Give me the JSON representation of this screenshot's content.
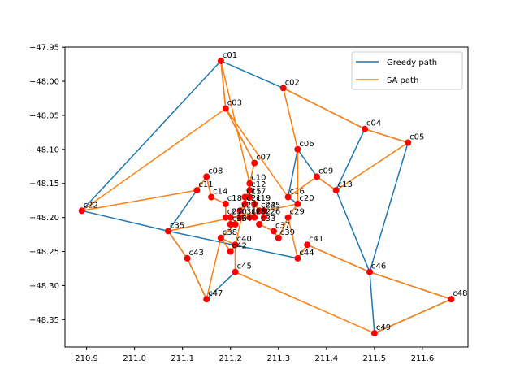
{
  "chart_data": {
    "type": "line",
    "title": "",
    "xlabel": "",
    "ylabel": "",
    "xlim": [
      210.855,
      211.695
    ],
    "ylim": [
      -48.3902,
      -47.9498
    ],
    "xticks": [
      210.9,
      211.0,
      211.1,
      211.2,
      211.3,
      211.4,
      211.5,
      211.6
    ],
    "xtick_labels": [
      "210.9",
      "211.0",
      "211.1",
      "211.2",
      "211.3",
      "211.4",
      "211.5",
      "211.6"
    ],
    "yticks": [
      -47.95,
      -48.0,
      -48.05,
      -48.1,
      -48.15,
      -48.2,
      -48.25,
      -48.3,
      -48.35
    ],
    "ytick_labels": [
      "−47.95",
      "−48.00",
      "−48.05",
      "−48.10",
      "−48.15",
      "−48.20",
      "−48.25",
      "−48.30",
      "−48.35"
    ],
    "grid": false,
    "legend_position": "upper right",
    "cities": [
      {
        "label": "c01",
        "x": 211.18,
        "y": -47.97
      },
      {
        "label": "c02",
        "x": 211.31,
        "y": -48.01
      },
      {
        "label": "c03",
        "x": 211.19,
        "y": -48.04
      },
      {
        "label": "c04",
        "x": 211.48,
        "y": -48.07
      },
      {
        "label": "c05",
        "x": 211.57,
        "y": -48.09
      },
      {
        "label": "c06",
        "x": 211.34,
        "y": -48.1
      },
      {
        "label": "c07",
        "x": 211.25,
        "y": -48.12
      },
      {
        "label": "c08",
        "x": 211.15,
        "y": -48.14
      },
      {
        "label": "c09",
        "x": 211.38,
        "y": -48.14
      },
      {
        "label": "c10",
        "x": 211.24,
        "y": -48.15
      },
      {
        "label": "c11",
        "x": 211.13,
        "y": -48.16
      },
      {
        "label": "c12",
        "x": 211.24,
        "y": -48.16
      },
      {
        "label": "c13",
        "x": 211.42,
        "y": -48.16
      },
      {
        "label": "c14",
        "x": 211.16,
        "y": -48.17
      },
      {
        "label": "c15",
        "x": 211.23,
        "y": -48.17
      },
      {
        "label": "c16",
        "x": 211.32,
        "y": -48.17
      },
      {
        "label": "c17",
        "x": 211.24,
        "y": -48.17
      },
      {
        "label": "c18",
        "x": 211.19,
        "y": -48.18
      },
      {
        "label": "c19",
        "x": 211.25,
        "y": -48.18
      },
      {
        "label": "c20",
        "x": 211.34,
        "y": -48.18
      },
      {
        "label": "c21",
        "x": 211.23,
        "y": -48.18
      },
      {
        "label": "c22",
        "x": 210.89,
        "y": -48.19
      },
      {
        "label": "c23",
        "x": 211.22,
        "y": -48.19
      },
      {
        "label": "c24",
        "x": 211.26,
        "y": -48.19
      },
      {
        "label": "c25",
        "x": 211.27,
        "y": -48.19
      },
      {
        "label": "c26",
        "x": 211.27,
        "y": -48.2
      },
      {
        "label": "c27",
        "x": 211.19,
        "y": -48.2
      },
      {
        "label": "c28",
        "x": 211.24,
        "y": -48.2
      },
      {
        "label": "c29",
        "x": 211.32,
        "y": -48.2
      },
      {
        "label": "c30",
        "x": 211.2,
        "y": -48.2
      },
      {
        "label": "c31",
        "x": 211.22,
        "y": -48.2
      },
      {
        "label": "c32",
        "x": 211.25,
        "y": -48.2
      },
      {
        "label": "c33",
        "x": 211.26,
        "y": -48.21
      },
      {
        "label": "c34",
        "x": 211.21,
        "y": -48.21
      },
      {
        "label": "c35",
        "x": 211.07,
        "y": -48.22
      },
      {
        "label": "c36",
        "x": 211.2,
        "y": -48.21
      },
      {
        "label": "c37",
        "x": 211.29,
        "y": -48.22
      },
      {
        "label": "c38",
        "x": 211.18,
        "y": -48.23
      },
      {
        "label": "c39",
        "x": 211.3,
        "y": -48.23
      },
      {
        "label": "c40",
        "x": 211.21,
        "y": -48.24
      },
      {
        "label": "c41",
        "x": 211.36,
        "y": -48.24
      },
      {
        "label": "c42",
        "x": 211.2,
        "y": -48.25
      },
      {
        "label": "c43",
        "x": 211.11,
        "y": -48.26
      },
      {
        "label": "c44",
        "x": 211.34,
        "y": -48.26
      },
      {
        "label": "c45",
        "x": 211.21,
        "y": -48.28
      },
      {
        "label": "c46",
        "x": 211.49,
        "y": -48.28
      },
      {
        "label": "c47",
        "x": 211.15,
        "y": -48.32
      },
      {
        "label": "c48",
        "x": 211.66,
        "y": -48.32
      },
      {
        "label": "c49",
        "x": 211.5,
        "y": -48.37
      }
    ],
    "series": [
      {
        "name": "Greedy path",
        "color": "#1f77b4",
        "route": [
          "c01",
          "c03",
          "c07",
          "c10",
          "c12",
          "c17",
          "c15",
          "c21",
          "c23",
          "c31",
          "c28",
          "c32",
          "c19",
          "c24",
          "c25",
          "c26",
          "c33",
          "c37",
          "c39",
          "c29",
          "c20",
          "c16",
          "c06",
          "c09",
          "c13",
          "c04",
          "c02",
          "c01",
          "c22",
          "c35",
          "c11",
          "c08",
          "c14",
          "c18",
          "c27",
          "c30",
          "c36",
          "c34",
          "c38",
          "c42",
          "c40",
          "c45",
          "c47",
          "c43",
          "c35",
          "c44",
          "c41",
          "c46",
          "c05",
          "c04",
          "c13",
          "c46",
          "c48",
          "c49",
          "c46"
        ]
      },
      {
        "name": "SA path",
        "color": "#ff7f0e",
        "route": [
          "c01",
          "c10",
          "c12",
          "c17",
          "c15",
          "c21",
          "c23",
          "c31",
          "c28",
          "c32",
          "c19",
          "c24",
          "c25",
          "c26",
          "c33",
          "c37",
          "c39",
          "c29",
          "c20",
          "c06",
          "c02",
          "c04",
          "c05",
          "c13",
          "c09",
          "c16",
          "c03",
          "c22",
          "c11",
          "c08",
          "c14",
          "c18",
          "c27",
          "c30",
          "c36",
          "c34",
          "c38",
          "c42",
          "c40",
          "c45",
          "c49",
          "c48",
          "c46",
          "c41",
          "c44",
          "c29",
          "c20",
          "c35",
          "c43",
          "c47",
          "c38",
          "c40",
          "c07",
          "c03",
          "c01"
        ]
      }
    ],
    "marker_color": "#ff0000"
  }
}
